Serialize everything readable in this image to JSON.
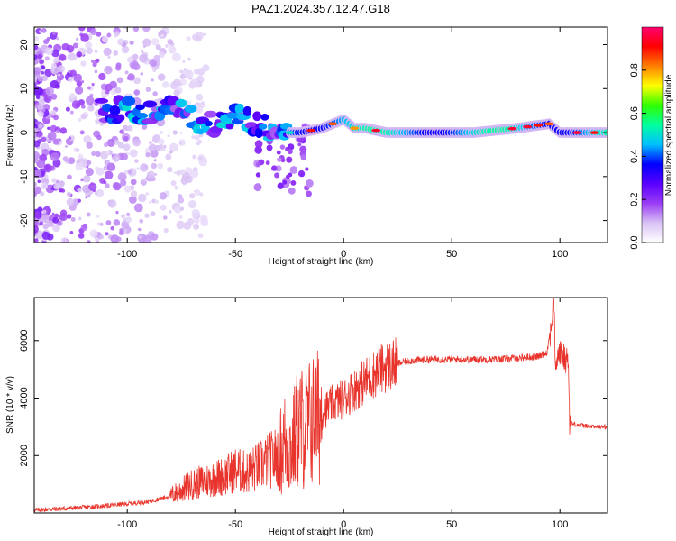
{
  "figure": {
    "title": "PAZ1.2024.357.12.47.G18"
  },
  "chart_data": [
    {
      "type": "heatmap",
      "xlabel": "Height of straight line (km)",
      "ylabel": "Frequency (Hz)",
      "xlim": [
        -143,
        122
      ],
      "ylim": [
        -25,
        24
      ],
      "xticks": [
        -100,
        -50,
        0,
        50,
        100
      ],
      "yticks": [
        -20,
        -10,
        0,
        10,
        20
      ],
      "colorbar": {
        "label": "Normalized spectral amplitude",
        "range": [
          0,
          1
        ],
        "ticks": [
          "0.0",
          "0.2",
          "0.4",
          "0.6",
          "0.8"
        ],
        "tick_values": [
          0.0,
          0.2,
          0.4,
          0.6,
          0.8
        ],
        "colormap": [
          "#ffffff",
          "#d9c2f5",
          "#9a3cf5",
          "#5a00ff",
          "#0000ff",
          "#00bfff",
          "#00ffa0",
          "#30ff00",
          "#ffff00",
          "#ff8000",
          "#ff0000",
          "#ff0070"
        ]
      },
      "ridge": {
        "description_points_x": [
          -112,
          -100,
          -90,
          -80,
          -70,
          -60,
          -50,
          -40,
          -30,
          -25,
          -20,
          -10,
          -5,
          0,
          5,
          10,
          20,
          40,
          60,
          80,
          95,
          100,
          110,
          122
        ],
        "description_points_y": [
          5,
          5,
          4,
          6,
          3,
          2,
          4,
          2,
          0,
          0,
          0,
          1,
          2,
          3,
          1,
          1,
          0,
          0,
          0,
          1,
          2,
          0,
          0,
          0
        ],
        "peak_amplitude": 0.95
      }
    },
    {
      "type": "line",
      "xlabel": "Height of straight line (km)",
      "ylabel": "SNR (10 * v/v)",
      "xlim": [
        -143,
        122
      ],
      "ylim": [
        0,
        7500
      ],
      "xticks": [
        -100,
        -50,
        0,
        50,
        100
      ],
      "yticks": [
        2000,
        4000,
        6000
      ],
      "series_color": "#e8342c",
      "series": [
        {
          "x": [
            -143,
            -130,
            -120,
            -110,
            -100,
            -90,
            -85,
            -80,
            -75,
            -70,
            -65,
            -60,
            -55,
            -50,
            -45,
            -40,
            -35,
            -30,
            -27,
            -24,
            -22,
            -20,
            -18,
            -15,
            -12,
            -10,
            -5,
            0,
            5,
            10,
            15,
            20,
            25,
            30,
            40,
            50,
            60,
            70,
            80,
            90,
            94,
            96,
            97,
            98,
            100,
            102,
            104,
            104.5,
            106,
            110,
            115,
            122
          ],
          "y": [
            100,
            150,
            200,
            250,
            320,
            400,
            500,
            600,
            800,
            1000,
            1100,
            1200,
            1300,
            1500,
            1400,
            1600,
            1800,
            2000,
            2500,
            2200,
            2800,
            3000,
            2900,
            3200,
            3300,
            3500,
            3800,
            4000,
            4300,
            4600,
            4900,
            5100,
            5200,
            5300,
            5350,
            5350,
            5350,
            5350,
            5400,
            5450,
            5600,
            6500,
            7500,
            5200,
            5600,
            5400,
            5300,
            3200,
            3100,
            3050,
            3000,
            3000
          ]
        }
      ]
    }
  ]
}
